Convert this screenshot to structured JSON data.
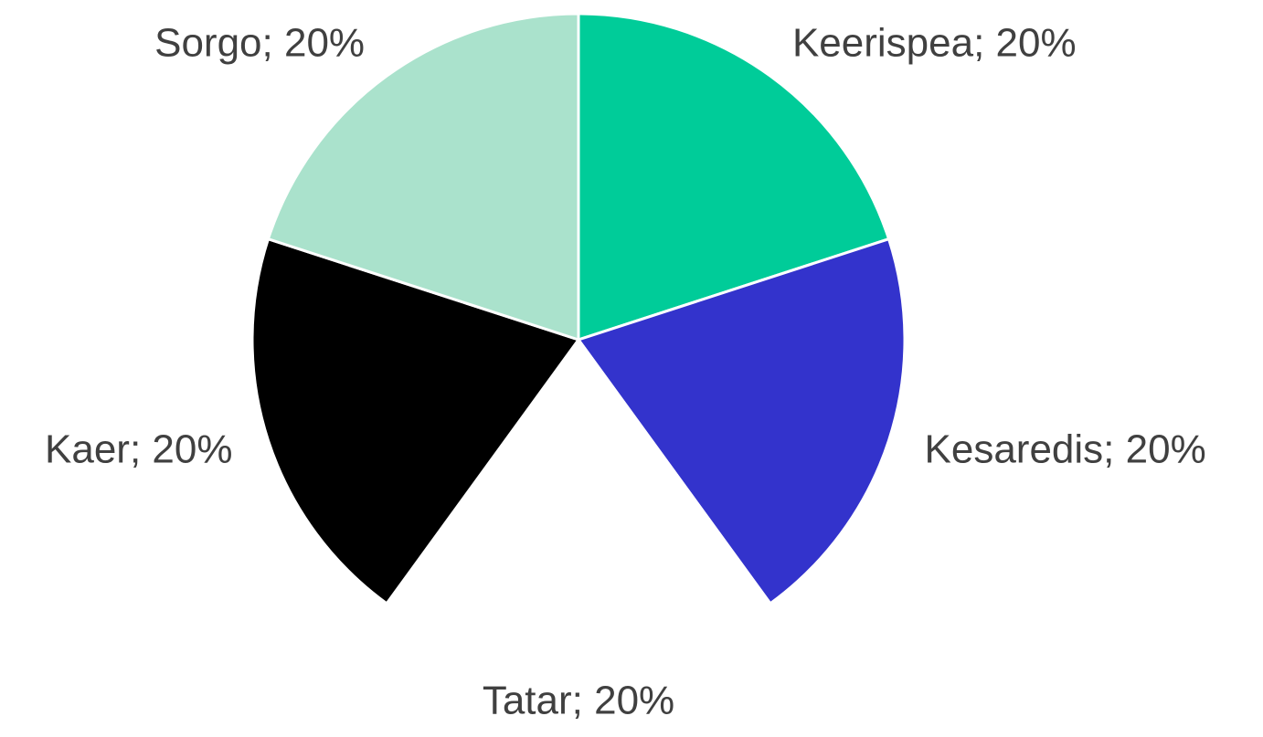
{
  "chart_data": {
    "type": "pie",
    "values": [
      20,
      20,
      20,
      20,
      20
    ],
    "value_labels": [
      "Keerispea; 20%",
      "Kesaredis; 20%",
      "Tatar; 20%",
      "Kaer; 20%",
      "Sorgo; 20%"
    ],
    "colors": [
      "#00cc99",
      "#3333cc",
      "#ffffff",
      "#000000",
      "#aae2cc"
    ]
  }
}
